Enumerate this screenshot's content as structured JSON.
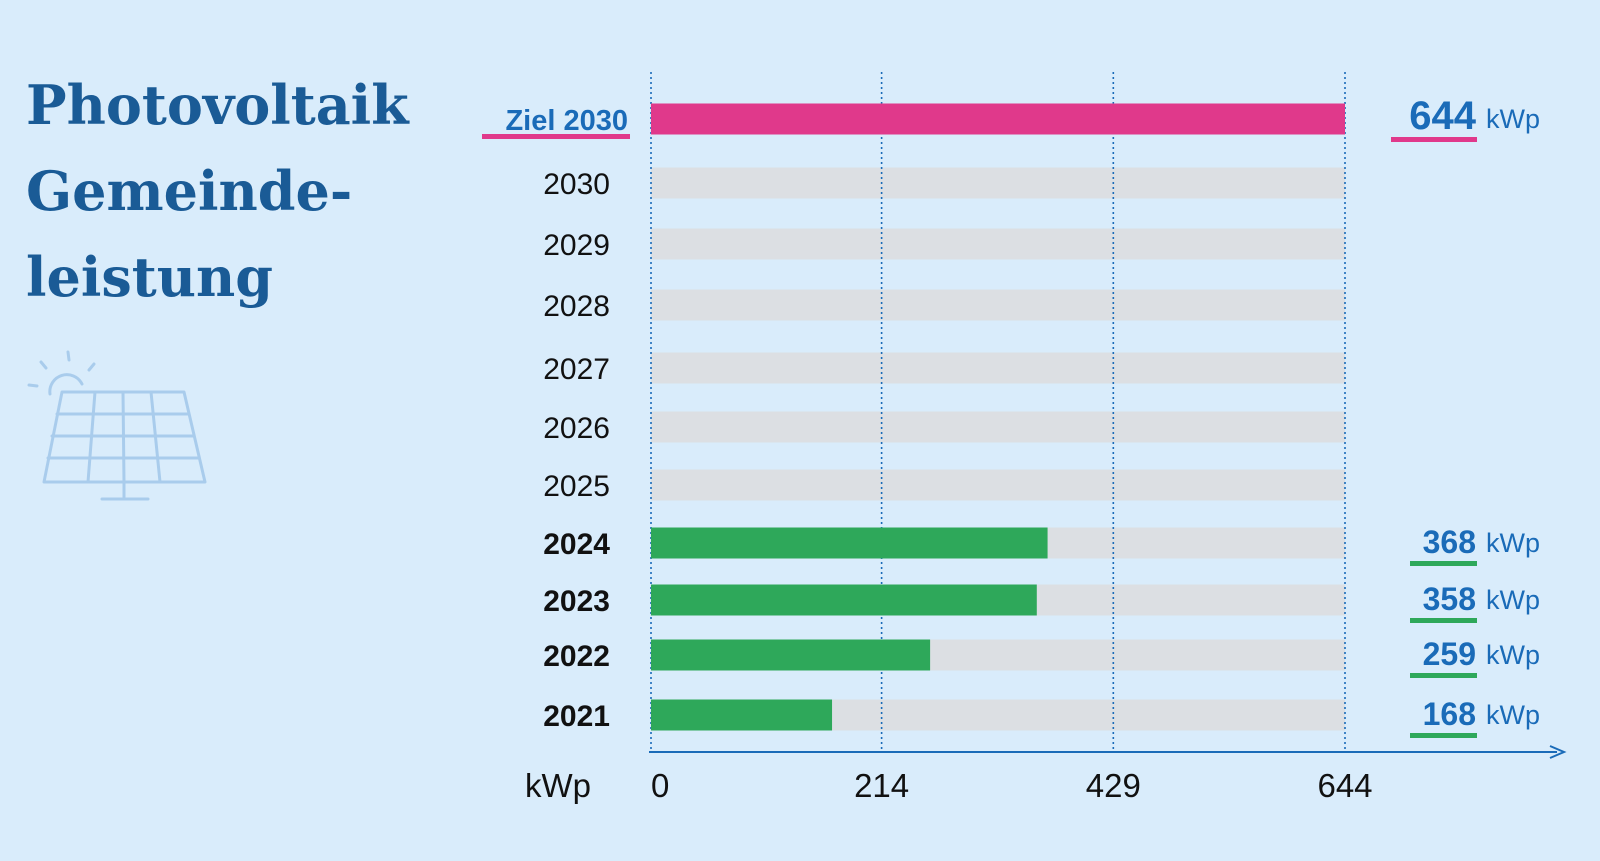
{
  "title": [
    "Photovoltaik",
    "Gemeinde-",
    "leistung"
  ],
  "icons": {
    "solar_panel": "solar-panel-with-sun-icon"
  },
  "colors": {
    "background": "#d9ecfb",
    "title": "#1a5b96",
    "target_bar": "#e0398b",
    "actual_bar": "#2ea85a",
    "empty_bar": "#dcdfe3",
    "axis": "#1a6bb8"
  },
  "chart_data": {
    "type": "bar",
    "orientation": "horizontal",
    "unit": "kWp",
    "xlabel": "kWp",
    "xlim": [
      0,
      644
    ],
    "xticks": [
      0,
      214,
      429,
      644
    ],
    "grid": "vertical dotted",
    "categories": [
      "Ziel 2030",
      "2030",
      "2029",
      "2028",
      "2027",
      "2026",
      "2025",
      "2024",
      "2023",
      "2022",
      "2021"
    ],
    "values": [
      644,
      null,
      null,
      null,
      null,
      null,
      null,
      368,
      358,
      259,
      168
    ],
    "value_labels": [
      "644",
      "",
      "",
      "",
      "",
      "",
      "",
      "368",
      "358",
      "259",
      "168"
    ],
    "value_unit_label": "kWp",
    "highlight": "Ziel 2030"
  }
}
